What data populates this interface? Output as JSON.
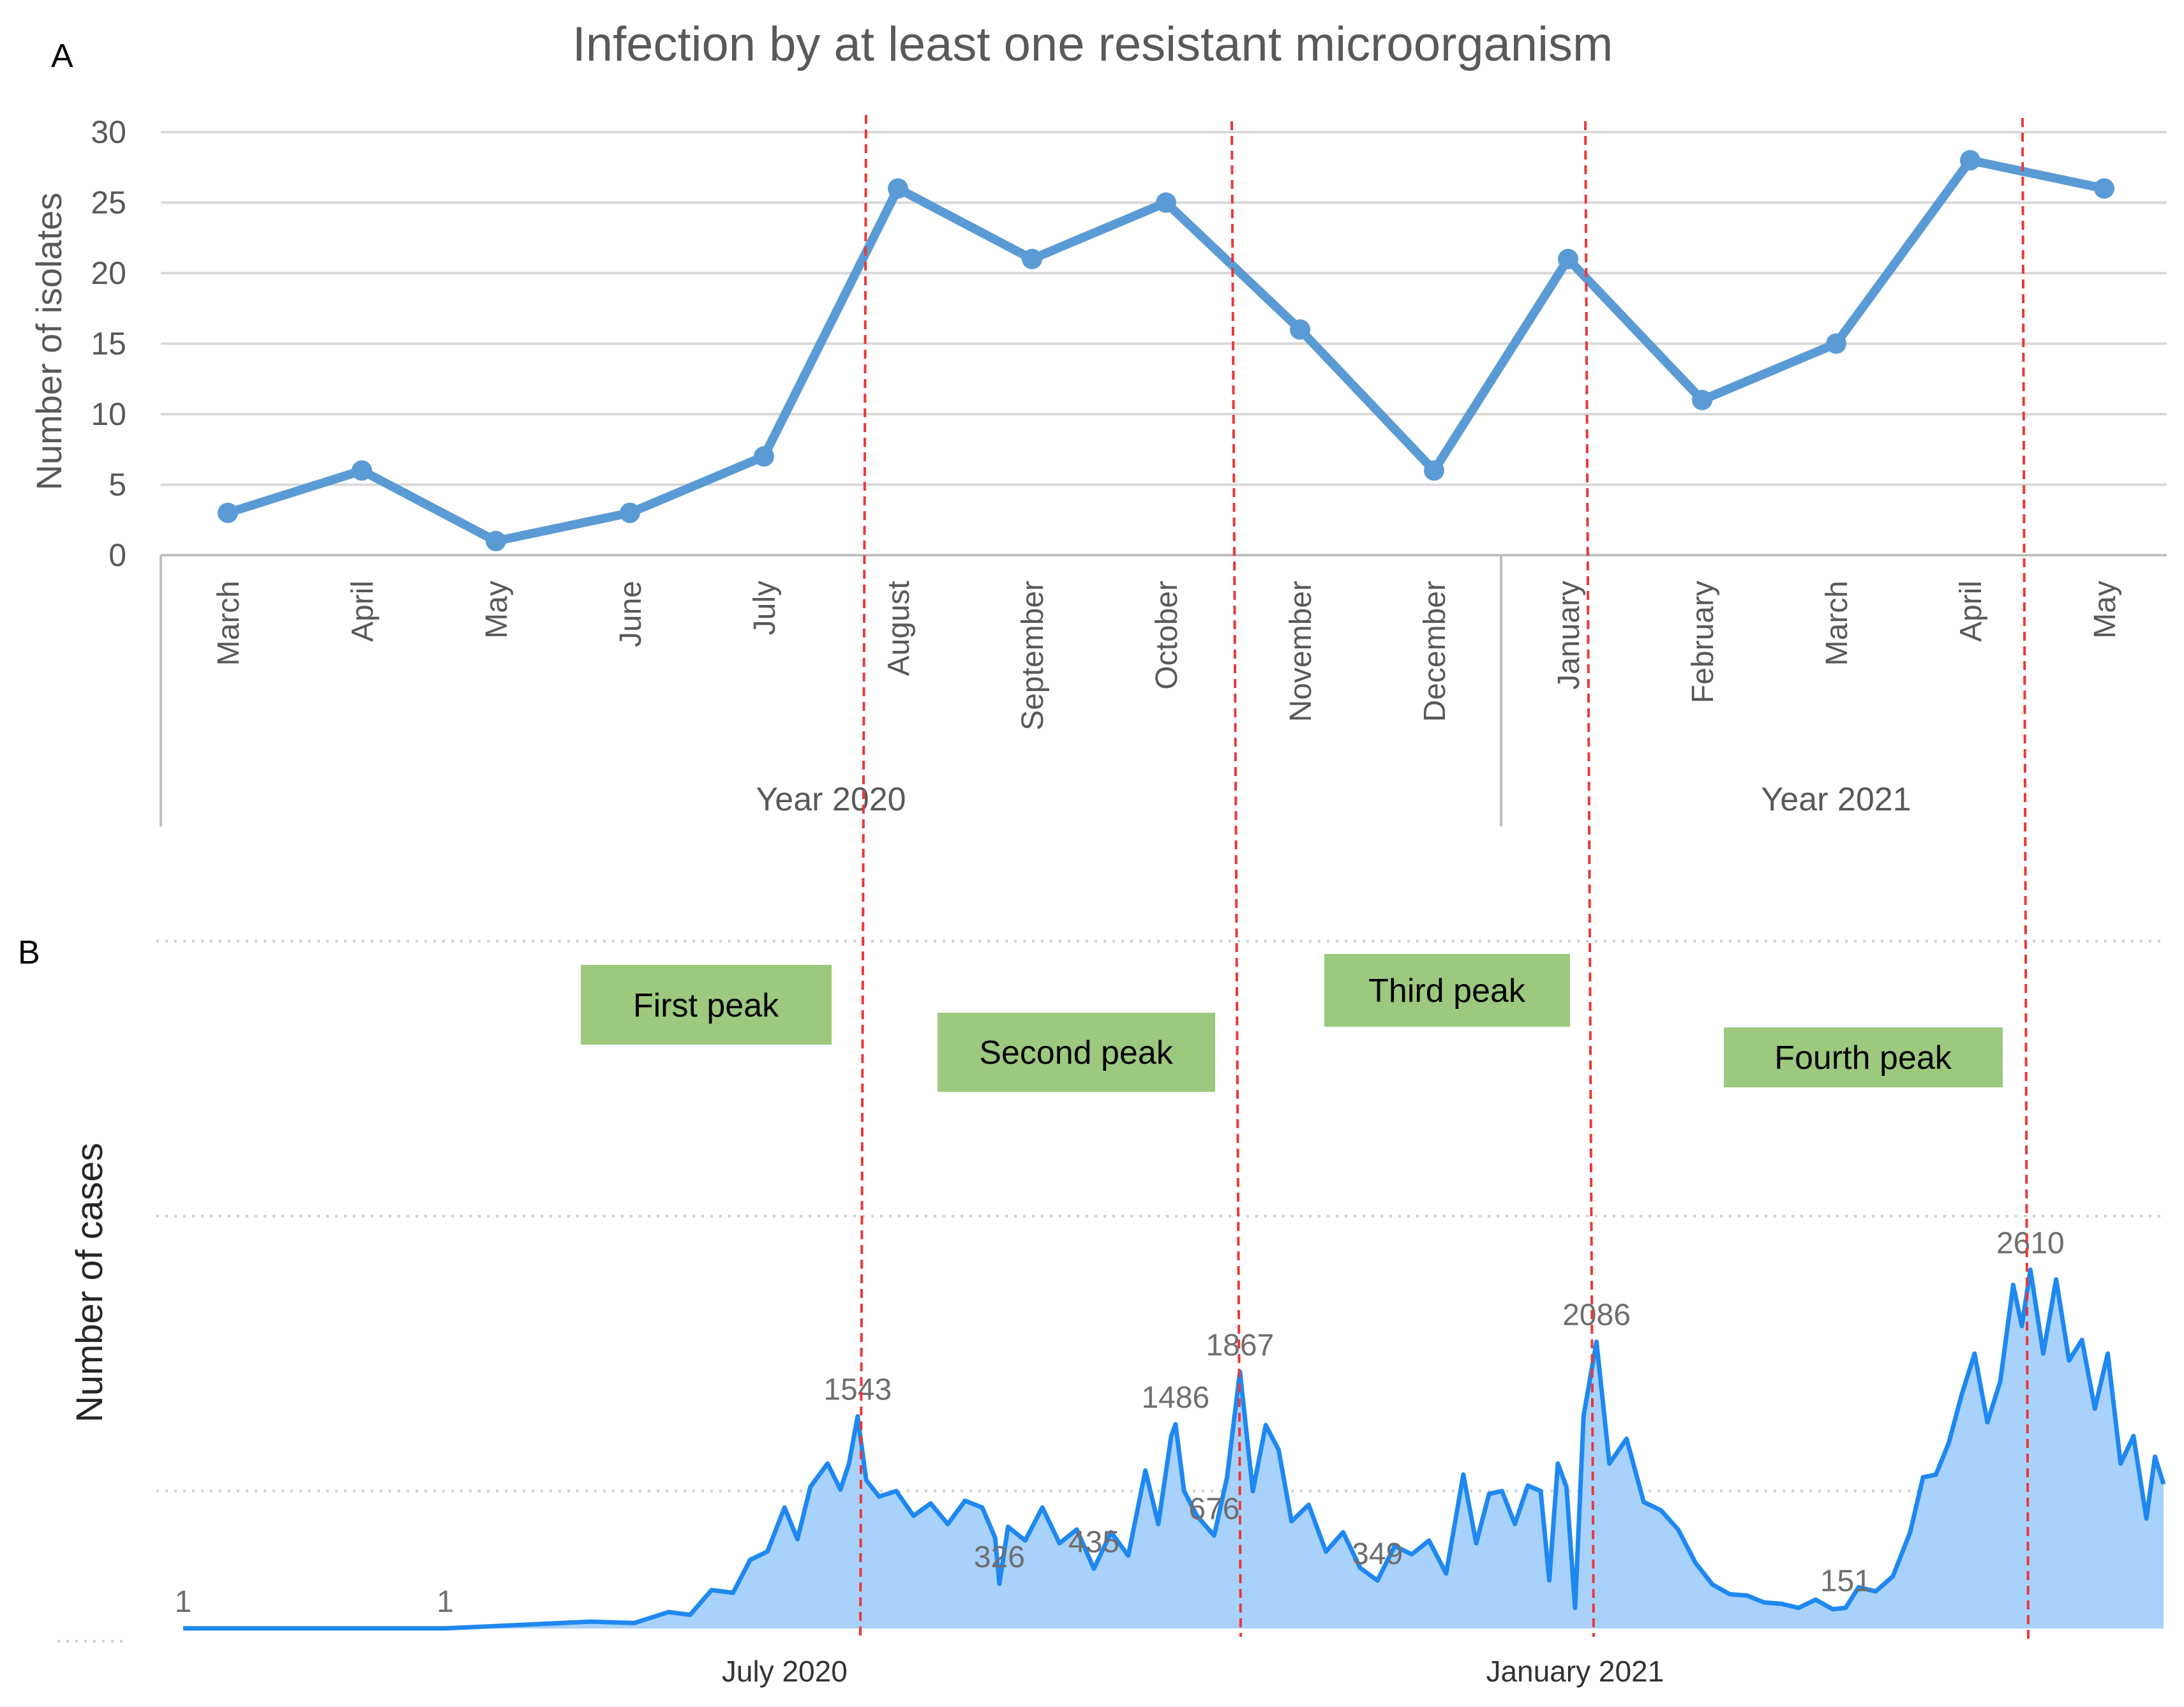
{
  "colors": {
    "line": "#5b9bd5",
    "grid": "#d9d9d9",
    "axis": "#bfbfbf",
    "text": "#595959",
    "area_fill": "#a8d1fb",
    "area_line": "#1e88f0",
    "peak_box": "#9dc97f",
    "wave_divider": "#e8393a"
  },
  "panel_a": {
    "label": "A",
    "chart_data": {
      "type": "line",
      "title": "Infection by at least one resistant microorganism",
      "ylabel": "Number of isolates",
      "xlabel": "",
      "ylim": [
        0,
        30
      ],
      "yticks": [
        0,
        5,
        10,
        15,
        20,
        25,
        30
      ],
      "grid": true,
      "categories": [
        "March",
        "April",
        "May",
        "June",
        "July",
        "August",
        "September",
        "October",
        "November",
        "December",
        "January",
        "February",
        "March",
        "April",
        "May"
      ],
      "values": [
        3,
        6,
        1,
        3,
        7,
        26,
        21,
        25,
        16,
        6,
        21,
        11,
        15,
        28,
        26
      ],
      "groups": [
        {
          "label": "Year 2020",
          "start": 0,
          "end": 9
        },
        {
          "label": "Year 2021",
          "start": 10,
          "end": 14
        }
      ]
    }
  },
  "panel_b": {
    "label": "B",
    "peaks": [
      "First peak",
      "Second peak",
      "Third peak",
      "Fourth peak"
    ],
    "chart_data": {
      "type": "area",
      "ylabel": "Number of cases",
      "xlabel": "",
      "ylim": [
        0,
        5000
      ],
      "gridlines": [
        1000,
        3000,
        5000
      ],
      "grid_style": "dotted",
      "x_ticks": [
        {
          "label": "July 2020",
          "day": 140
        },
        {
          "label": "January 2021",
          "day": 324
        }
      ],
      "x_range_days": [
        0,
        461
      ],
      "annotations": [
        {
          "text": "1",
          "day": 0,
          "value": 1
        },
        {
          "text": "1",
          "day": 61,
          "value": 1
        },
        {
          "text": "1543",
          "day": 157,
          "value": 1543
        },
        {
          "text": "326",
          "day": 190,
          "value": 326
        },
        {
          "text": "435",
          "day": 212,
          "value": 435
        },
        {
          "text": "1486",
          "day": 231,
          "value": 1486
        },
        {
          "text": "676",
          "day": 240,
          "value": 676
        },
        {
          "text": "1867",
          "day": 246,
          "value": 1867
        },
        {
          "text": "349",
          "day": 278,
          "value": 349
        },
        {
          "text": "2086",
          "day": 329,
          "value": 2086
        },
        {
          "text": "151",
          "day": 387,
          "value": 151
        },
        {
          "text": "2610",
          "day": 430,
          "value": 2610
        }
      ],
      "series_keypoints": [
        [
          0,
          1
        ],
        [
          61,
          1
        ],
        [
          95,
          50
        ],
        [
          105,
          40
        ],
        [
          113,
          120
        ],
        [
          118,
          100
        ],
        [
          123,
          280
        ],
        [
          128,
          260
        ],
        [
          132,
          500
        ],
        [
          136,
          560
        ],
        [
          140,
          880
        ],
        [
          143,
          650
        ],
        [
          146,
          1030
        ],
        [
          150,
          1200
        ],
        [
          153,
          1010
        ],
        [
          155,
          1200
        ],
        [
          157,
          1543
        ],
        [
          159,
          1080
        ],
        [
          162,
          960
        ],
        [
          166,
          1000
        ],
        [
          170,
          820
        ],
        [
          174,
          910
        ],
        [
          178,
          760
        ],
        [
          182,
          930
        ],
        [
          186,
          880
        ],
        [
          189,
          660
        ],
        [
          190,
          326
        ],
        [
          192,
          740
        ],
        [
          196,
          640
        ],
        [
          200,
          880
        ],
        [
          204,
          620
        ],
        [
          208,
          720
        ],
        [
          212,
          435
        ],
        [
          216,
          700
        ],
        [
          220,
          530
        ],
        [
          224,
          1150
        ],
        [
          227,
          760
        ],
        [
          230,
          1400
        ],
        [
          231,
          1486
        ],
        [
          233,
          1000
        ],
        [
          236,
          820
        ],
        [
          240,
          676
        ],
        [
          243,
          1100
        ],
        [
          246,
          1867
        ],
        [
          249,
          1000
        ],
        [
          252,
          1480
        ],
        [
          255,
          1300
        ],
        [
          258,
          780
        ],
        [
          262,
          900
        ],
        [
          266,
          560
        ],
        [
          270,
          700
        ],
        [
          274,
          440
        ],
        [
          278,
          349
        ],
        [
          282,
          600
        ],
        [
          286,
          540
        ],
        [
          290,
          640
        ],
        [
          294,
          400
        ],
        [
          298,
          1120
        ],
        [
          301,
          620
        ],
        [
          304,
          980
        ],
        [
          307,
          1000
        ],
        [
          310,
          760
        ],
        [
          313,
          1040
        ],
        [
          316,
          1000
        ],
        [
          318,
          350
        ],
        [
          320,
          1200
        ],
        [
          322,
          1030
        ],
        [
          324,
          150
        ],
        [
          326,
          1550
        ],
        [
          329,
          2086
        ],
        [
          332,
          1200
        ],
        [
          336,
          1380
        ],
        [
          340,
          920
        ],
        [
          344,
          860
        ],
        [
          348,
          720
        ],
        [
          352,
          480
        ],
        [
          356,
          320
        ],
        [
          360,
          250
        ],
        [
          364,
          240
        ],
        [
          368,
          190
        ],
        [
          372,
          180
        ],
        [
          376,
          150
        ],
        [
          380,
          210
        ],
        [
          384,
          140
        ],
        [
          387,
          151
        ],
        [
          390,
          300
        ],
        [
          394,
          270
        ],
        [
          398,
          380
        ],
        [
          402,
          700
        ],
        [
          405,
          1100
        ],
        [
          408,
          1120
        ],
        [
          411,
          1350
        ],
        [
          414,
          1700
        ],
        [
          417,
          2000
        ],
        [
          420,
          1500
        ],
        [
          423,
          1800
        ],
        [
          426,
          2500
        ],
        [
          428,
          2200
        ],
        [
          430,
          2610
        ],
        [
          433,
          2000
        ],
        [
          436,
          2540
        ],
        [
          439,
          1950
        ],
        [
          442,
          2100
        ],
        [
          445,
          1600
        ],
        [
          448,
          2000
        ],
        [
          451,
          1200
        ],
        [
          454,
          1400
        ],
        [
          457,
          800
        ],
        [
          459,
          1250
        ],
        [
          461,
          1050
        ]
      ]
    }
  }
}
